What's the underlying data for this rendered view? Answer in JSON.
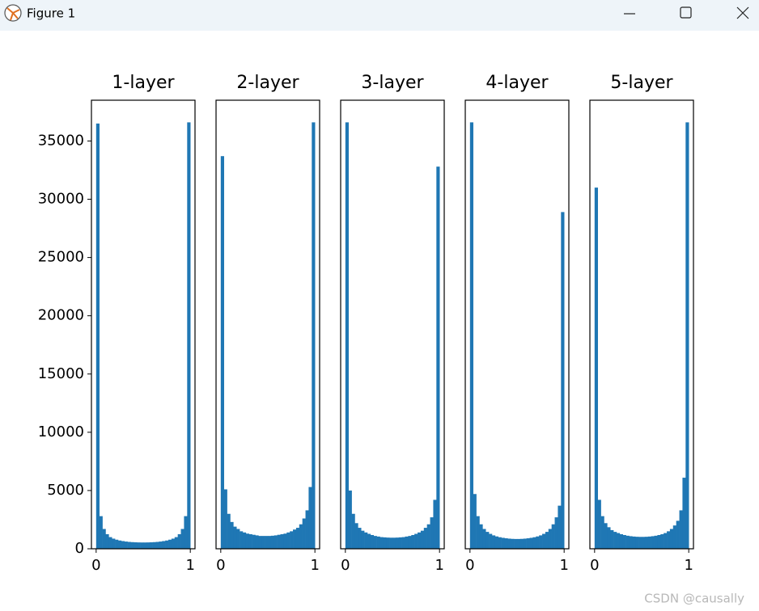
{
  "window": {
    "title": "Figure 1"
  },
  "chart_data": [
    {
      "type": "histogram",
      "title": "1-layer",
      "color": "#1f77b4",
      "bins": [
        0,
        0.0333,
        0.0667,
        0.1,
        0.1333,
        0.1667,
        0.2,
        0.2333,
        0.2667,
        0.3,
        0.3333,
        0.3667,
        0.4,
        0.4333,
        0.4667,
        0.5,
        0.5333,
        0.5667,
        0.6,
        0.6333,
        0.6667,
        0.7,
        0.7333,
        0.7667,
        0.8,
        0.8333,
        0.8667,
        0.9,
        0.9333,
        0.9667,
        1
      ],
      "values": [
        36500,
        2800,
        1700,
        1250,
        1000,
        870,
        780,
        710,
        660,
        620,
        590,
        570,
        555,
        545,
        540,
        540,
        545,
        555,
        570,
        590,
        620,
        660,
        710,
        780,
        870,
        1000,
        1250,
        1700,
        2800,
        36600
      ],
      "xlim": [
        -0.05,
        1.05
      ],
      "xticks": [
        0,
        1
      ],
      "ylim": [
        0,
        38500
      ],
      "yticks": [
        0,
        5000,
        10000,
        15000,
        20000,
        25000,
        30000,
        35000
      ]
    },
    {
      "type": "histogram",
      "title": "2-layer",
      "color": "#1f77b4",
      "bins": [
        0,
        0.0333,
        0.0667,
        0.1,
        0.1333,
        0.1667,
        0.2,
        0.2333,
        0.2667,
        0.3,
        0.3333,
        0.3667,
        0.4,
        0.4333,
        0.4667,
        0.5,
        0.5333,
        0.5667,
        0.6,
        0.6333,
        0.6667,
        0.7,
        0.7333,
        0.7667,
        0.8,
        0.8333,
        0.8667,
        0.9,
        0.9333,
        0.9667,
        1
      ],
      "values": [
        33700,
        5100,
        3000,
        2300,
        1900,
        1700,
        1500,
        1400,
        1300,
        1250,
        1200,
        1150,
        1100,
        1100,
        1100,
        1100,
        1120,
        1150,
        1200,
        1250,
        1300,
        1400,
        1500,
        1650,
        1800,
        2100,
        2600,
        3300,
        5300,
        36600
      ],
      "xlim": [
        -0.05,
        1.05
      ],
      "xticks": [
        0,
        1
      ],
      "ylim": [
        0,
        38500
      ]
    },
    {
      "type": "histogram",
      "title": "3-layer",
      "color": "#1f77b4",
      "bins": [
        0,
        0.0333,
        0.0667,
        0.1,
        0.1333,
        0.1667,
        0.2,
        0.2333,
        0.2667,
        0.3,
        0.3333,
        0.3667,
        0.4,
        0.4333,
        0.4667,
        0.5,
        0.5333,
        0.5667,
        0.6,
        0.6333,
        0.6667,
        0.7,
        0.7333,
        0.7667,
        0.8,
        0.8333,
        0.8667,
        0.9,
        0.9333,
        0.9667,
        1
      ],
      "values": [
        36600,
        5000,
        3000,
        2200,
        1800,
        1550,
        1400,
        1280,
        1180,
        1100,
        1050,
        1000,
        980,
        960,
        950,
        950,
        960,
        980,
        1000,
        1050,
        1100,
        1180,
        1280,
        1400,
        1550,
        1800,
        2100,
        2700,
        4200,
        32800
      ],
      "xlim": [
        -0.05,
        1.05
      ],
      "xticks": [
        0,
        1
      ],
      "ylim": [
        0,
        38500
      ]
    },
    {
      "type": "histogram",
      "title": "4-layer",
      "color": "#1f77b4",
      "bins": [
        0,
        0.0333,
        0.0667,
        0.1,
        0.1333,
        0.1667,
        0.2,
        0.2333,
        0.2667,
        0.3,
        0.3333,
        0.3667,
        0.4,
        0.4333,
        0.4667,
        0.5,
        0.5333,
        0.5667,
        0.6,
        0.6333,
        0.6667,
        0.7,
        0.7333,
        0.7667,
        0.8,
        0.8333,
        0.8667,
        0.9,
        0.9333,
        0.9667,
        1
      ],
      "values": [
        36600,
        4700,
        2800,
        2100,
        1700,
        1450,
        1280,
        1150,
        1060,
        990,
        940,
        900,
        870,
        850,
        840,
        840,
        850,
        870,
        900,
        940,
        990,
        1060,
        1150,
        1280,
        1450,
        1700,
        2100,
        2700,
        3700,
        28900
      ],
      "xlim": [
        -0.05,
        1.05
      ],
      "xticks": [
        0,
        1
      ],
      "ylim": [
        0,
        38500
      ]
    },
    {
      "type": "histogram",
      "title": "5-layer",
      "color": "#1f77b4",
      "bins": [
        0,
        0.0333,
        0.0667,
        0.1,
        0.1333,
        0.1667,
        0.2,
        0.2333,
        0.2667,
        0.3,
        0.3333,
        0.3667,
        0.4,
        0.4333,
        0.4667,
        0.5,
        0.5333,
        0.5667,
        0.6,
        0.6333,
        0.6667,
        0.7,
        0.7333,
        0.7667,
        0.8,
        0.8333,
        0.8667,
        0.9,
        0.9333,
        0.9667,
        1
      ],
      "values": [
        31000,
        4200,
        2800,
        2200,
        1850,
        1600,
        1450,
        1350,
        1250,
        1180,
        1120,
        1080,
        1050,
        1030,
        1020,
        1020,
        1030,
        1050,
        1080,
        1120,
        1180,
        1250,
        1350,
        1500,
        1700,
        2000,
        2400,
        3300,
        6100,
        36600
      ],
      "xlim": [
        -0.05,
        1.05
      ],
      "xticks": [
        0,
        1
      ],
      "ylim": [
        0,
        38500
      ]
    }
  ],
  "watermark": "CSDN @causally"
}
